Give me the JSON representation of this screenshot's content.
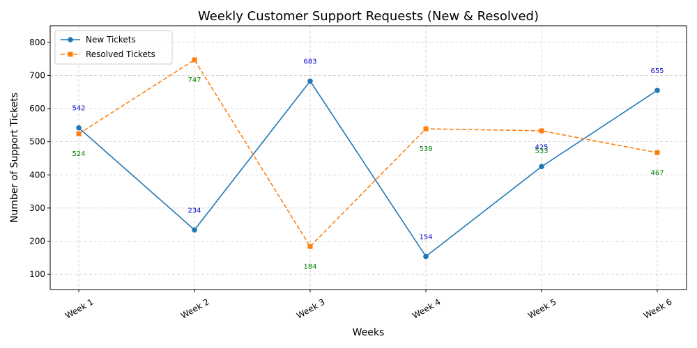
{
  "chart_data": {
    "type": "line",
    "title": "Weekly Customer Support Requests (New & Resolved)",
    "xlabel": "Weeks",
    "ylabel": "Number of Support Tickets",
    "categories": [
      "Week 1",
      "Week 2",
      "Week 3",
      "Week 4",
      "Week 5",
      "Week 6"
    ],
    "ylim": [
      54,
      850
    ],
    "yticks": [
      100,
      200,
      300,
      400,
      500,
      600,
      700,
      800
    ],
    "grid": true,
    "legend_position": "top-left",
    "series": [
      {
        "name": "New Tickets",
        "values": [
          542,
          234,
          683,
          154,
          425,
          655
        ],
        "color": "#1f77b4",
        "label_color": "#0000cc",
        "line_style": "solid",
        "marker": "circle",
        "label_position": "above"
      },
      {
        "name": "Resolved Tickets",
        "values": [
          524,
          747,
          184,
          539,
          533,
          467
        ],
        "color": "#ff7f0e",
        "label_color": "#008000",
        "line_style": "dashed",
        "marker": "square",
        "label_position": "below"
      }
    ]
  }
}
